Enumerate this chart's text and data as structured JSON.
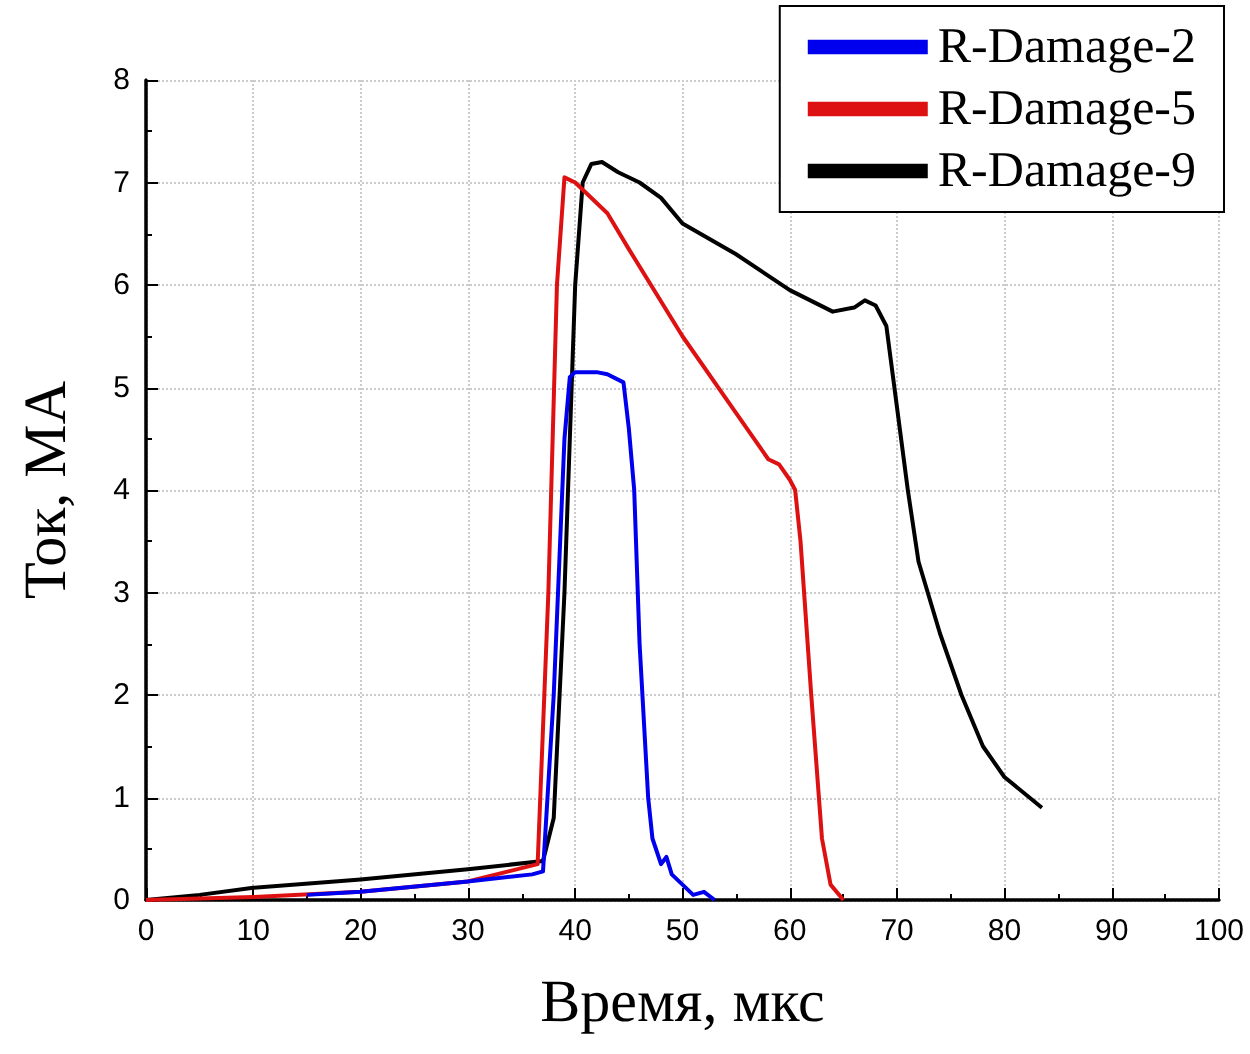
{
  "chart_data": {
    "type": "line",
    "xlabel": "Время, мкс",
    "ylabel": "Ток, MA",
    "xlim": [
      0,
      100
    ],
    "xticks": [
      0,
      10,
      20,
      30,
      40,
      50,
      60,
      70,
      80,
      90,
      100
    ],
    "ylim": [
      0,
      8
    ],
    "yticks": [
      0,
      1,
      2,
      3,
      4,
      5,
      6,
      7,
      8
    ],
    "grid": true,
    "legend": "top right",
    "marker": "none",
    "line_style": "solid",
    "series": [
      {
        "name": "R-Damage-2",
        "color": "#0000ee",
        "x": [
          15,
          20,
          30,
          36,
          37,
          38,
          39,
          39.5,
          40,
          42,
          43,
          44.5,
          45,
          45.5,
          46,
          46.8,
          47.2,
          48,
          48.5,
          49,
          50,
          51,
          52,
          53
        ],
        "values": [
          0.05,
          0.08,
          0.18,
          0.25,
          0.28,
          2,
          4.5,
          5.1,
          5.15,
          5.15,
          5.13,
          5.05,
          4.6,
          4,
          2.5,
          1,
          0.6,
          0.35,
          0.42,
          0.25,
          0.15,
          0.05,
          0.08,
          0
        ]
      },
      {
        "name": "R-Damage-5",
        "color": "#dd1111",
        "x": [
          0,
          10,
          20,
          30,
          36.5,
          37.5,
          38.3,
          39,
          40,
          41,
          43,
          45,
          50,
          55,
          58,
          59,
          60,
          60.5,
          61,
          62,
          63,
          63.8,
          65
        ],
        "values": [
          0,
          0.03,
          0.08,
          0.18,
          0.35,
          3,
          6,
          7.05,
          7,
          6.9,
          6.7,
          6.35,
          5.5,
          4.75,
          4.3,
          4.25,
          4.1,
          4,
          3.5,
          2,
          0.6,
          0.15,
          0
        ]
      },
      {
        "name": "R-Damage-9",
        "color": "#000000",
        "x": [
          0,
          5,
          10,
          20,
          30,
          37,
          38,
          39,
          40,
          40.7,
          41.5,
          42.5,
          44,
          46,
          48,
          50,
          55,
          60,
          64,
          66,
          67,
          68,
          69,
          70,
          71,
          72,
          74,
          76,
          78,
          80,
          83.5
        ],
        "values": [
          0,
          0.05,
          0.12,
          0.2,
          0.3,
          0.38,
          0.8,
          3,
          6,
          7,
          7.18,
          7.2,
          7.1,
          7,
          6.85,
          6.6,
          6.3,
          5.95,
          5.74,
          5.78,
          5.85,
          5.8,
          5.6,
          4.8,
          4,
          3.3,
          2.6,
          2,
          1.5,
          1.2,
          0.9
        ]
      }
    ]
  }
}
